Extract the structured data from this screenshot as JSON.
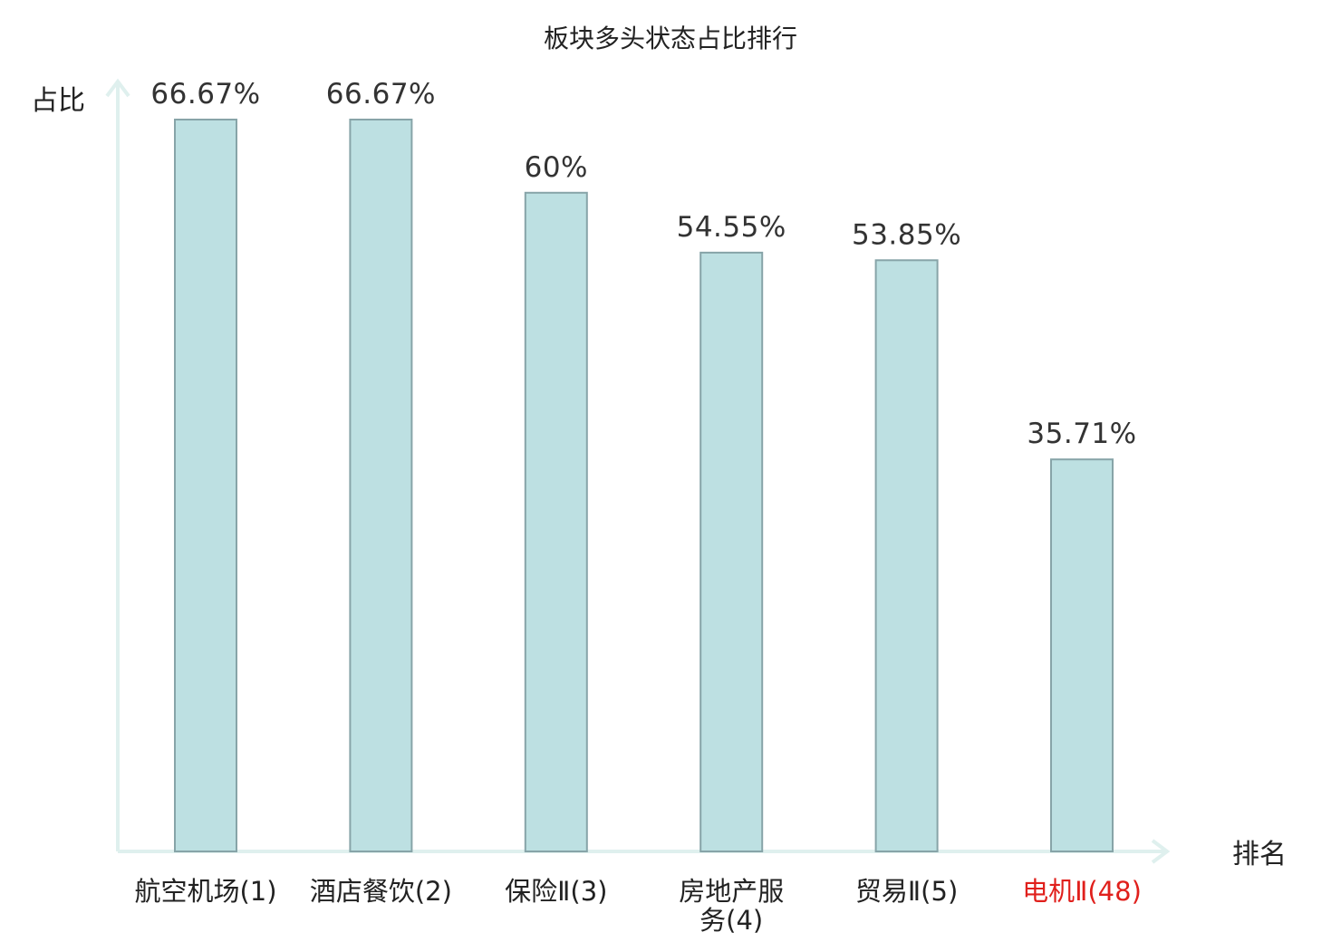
{
  "chart_data": {
    "type": "bar",
    "title": "板块多头状态占比排行",
    "ylabel": "占比",
    "xlabel": "排名",
    "categories": [
      "航空机场(1)",
      "酒店餐饮(2)",
      "保险Ⅱ(3)",
      "房地产服务(4)",
      "贸易Ⅱ(5)",
      "电机Ⅱ(48)"
    ],
    "values": [
      66.67,
      66.67,
      60,
      54.55,
      53.85,
      35.71
    ],
    "value_labels": [
      "66.67%",
      "66.67%",
      "60%",
      "54.55%",
      "53.85%",
      "35.71%"
    ],
    "highlight_index": 5,
    "ylim": [
      0,
      70
    ],
    "grid": false,
    "colors": {
      "bar_fill": "#bde0e2",
      "bar_stroke": "#87a4a8",
      "axis": "#dff0ee",
      "highlight_label": "#e0201c"
    }
  }
}
